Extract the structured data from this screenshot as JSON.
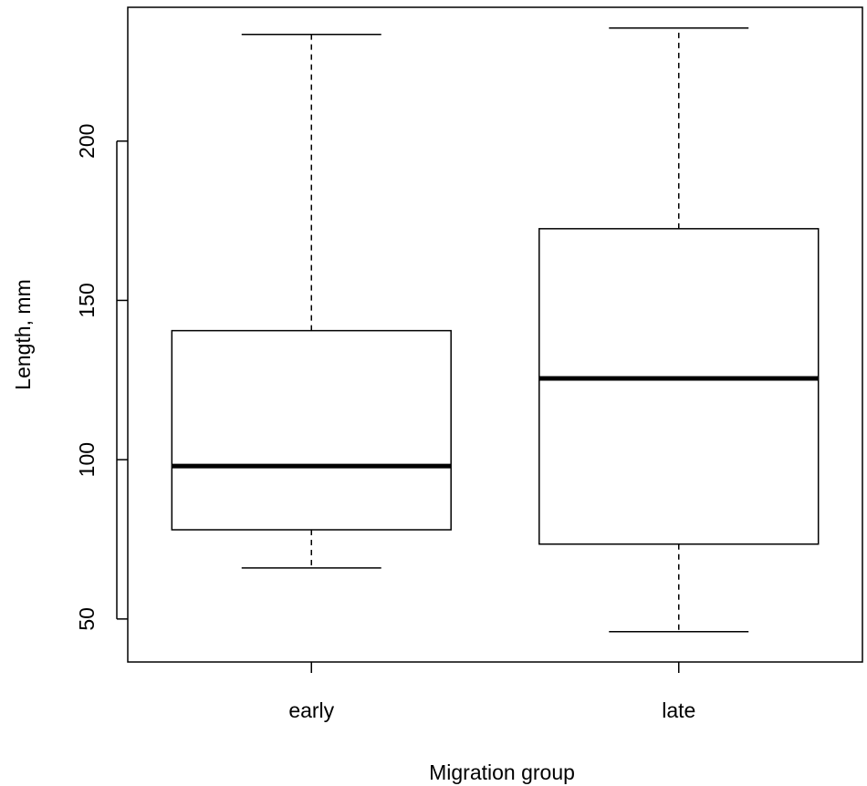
{
  "chart_data": {
    "type": "boxplot",
    "title": "",
    "xlabel": "Migration group",
    "ylabel": "Length, mm",
    "ylim": [
      36.5,
      242
    ],
    "yticks": [
      50,
      100,
      150,
      200
    ],
    "ytick_labels": [
      "50",
      "100",
      "150",
      "200"
    ],
    "grid": false,
    "categories": [
      "early",
      "late"
    ],
    "boxes": [
      {
        "name": "early",
        "whisker_low": 66,
        "q1": 78,
        "median": 98,
        "q3": 140.5,
        "whisker_high": 233.5
      },
      {
        "name": "late",
        "whisker_low": 46,
        "q1": 73.5,
        "median": 125.5,
        "q3": 172.5,
        "whisker_high": 235.5
      }
    ]
  }
}
